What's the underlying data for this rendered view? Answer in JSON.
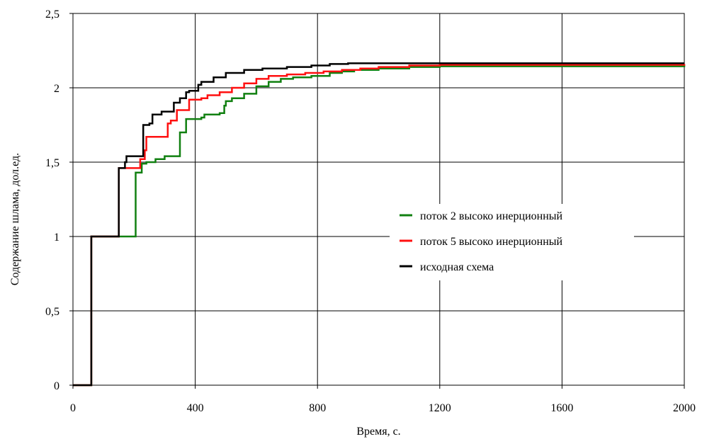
{
  "chart_data": {
    "type": "line",
    "title": "",
    "xlabel": "Время, с.",
    "ylabel": "Содержание шлама, дол.ед.",
    "xlim": [
      0,
      2000
    ],
    "ylim": [
      0,
      2.5
    ],
    "x_ticks": [
      0,
      400,
      800,
      1200,
      1600,
      2000
    ],
    "x_tick_labels": [
      "0",
      "400",
      "800",
      "1200",
      "1600",
      "2000"
    ],
    "y_ticks": [
      0,
      0.5,
      1,
      1.5,
      2,
      2.5
    ],
    "y_tick_labels": [
      "0",
      "0,5",
      "1",
      "1,5",
      "2",
      "2,5"
    ],
    "grid": true,
    "legend_position": "right-center",
    "step": true,
    "series": [
      {
        "name": "поток 2 высоко инерционный",
        "color": "#118011",
        "points": [
          [
            0,
            0
          ],
          [
            60,
            0
          ],
          [
            60,
            1
          ],
          [
            205,
            1
          ],
          [
            205,
            1.43
          ],
          [
            225,
            1.43
          ],
          [
            225,
            1.49
          ],
          [
            240,
            1.5
          ],
          [
            270,
            1.52
          ],
          [
            300,
            1.54
          ],
          [
            350,
            1.54
          ],
          [
            350,
            1.7
          ],
          [
            370,
            1.7
          ],
          [
            370,
            1.79
          ],
          [
            420,
            1.8
          ],
          [
            430,
            1.8
          ],
          [
            430,
            1.82
          ],
          [
            480,
            1.83
          ],
          [
            495,
            1.85
          ],
          [
            495,
            1.88
          ],
          [
            500,
            1.88
          ],
          [
            500,
            1.91
          ],
          [
            520,
            1.93
          ],
          [
            560,
            1.96
          ],
          [
            600,
            2.01
          ],
          [
            640,
            2.04
          ],
          [
            680,
            2.06
          ],
          [
            720,
            2.07
          ],
          [
            780,
            2.08
          ],
          [
            840,
            2.1
          ],
          [
            880,
            2.11
          ],
          [
            920,
            2.12
          ],
          [
            1000,
            2.13
          ],
          [
            1100,
            2.14
          ],
          [
            1200,
            2.145
          ],
          [
            2000,
            2.155
          ]
        ]
      },
      {
        "name": "поток 5 высоко инерционный",
        "color": "#ff1010",
        "points": [
          [
            0,
            0
          ],
          [
            60,
            0
          ],
          [
            60,
            1
          ],
          [
            150,
            1
          ],
          [
            150,
            1.46
          ],
          [
            220,
            1.46
          ],
          [
            220,
            1.52
          ],
          [
            235,
            1.52
          ],
          [
            235,
            1.58
          ],
          [
            240,
            1.67
          ],
          [
            310,
            1.68
          ],
          [
            310,
            1.76
          ],
          [
            320,
            1.78
          ],
          [
            340,
            1.78
          ],
          [
            340,
            1.85
          ],
          [
            380,
            1.86
          ],
          [
            380,
            1.92
          ],
          [
            420,
            1.93
          ],
          [
            440,
            1.95
          ],
          [
            480,
            1.97
          ],
          [
            520,
            2.0
          ],
          [
            560,
            2.03
          ],
          [
            600,
            2.06
          ],
          [
            640,
            2.08
          ],
          [
            700,
            2.09
          ],
          [
            760,
            2.1
          ],
          [
            820,
            2.11
          ],
          [
            880,
            2.12
          ],
          [
            940,
            2.13
          ],
          [
            1000,
            2.14
          ],
          [
            1100,
            2.15
          ],
          [
            1200,
            2.155
          ],
          [
            2000,
            2.16
          ]
        ]
      },
      {
        "name": "исходная схема",
        "color": "#000000",
        "points": [
          [
            0,
            0
          ],
          [
            60,
            0
          ],
          [
            60,
            1
          ],
          [
            150,
            1
          ],
          [
            150,
            1.46
          ],
          [
            170,
            1.46
          ],
          [
            170,
            1.5
          ],
          [
            175,
            1.54
          ],
          [
            230,
            1.54
          ],
          [
            230,
            1.75
          ],
          [
            250,
            1.76
          ],
          [
            260,
            1.82
          ],
          [
            290,
            1.84
          ],
          [
            330,
            1.9
          ],
          [
            350,
            1.93
          ],
          [
            370,
            1.97
          ],
          [
            380,
            1.98
          ],
          [
            410,
            1.99
          ],
          [
            410,
            2.02
          ],
          [
            420,
            2.02
          ],
          [
            420,
            2.04
          ],
          [
            460,
            2.07
          ],
          [
            500,
            2.1
          ],
          [
            560,
            2.12
          ],
          [
            620,
            2.13
          ],
          [
            700,
            2.14
          ],
          [
            780,
            2.15
          ],
          [
            840,
            2.16
          ],
          [
            900,
            2.165
          ],
          [
            1200,
            2.165
          ],
          [
            2000,
            2.165
          ]
        ]
      }
    ]
  }
}
